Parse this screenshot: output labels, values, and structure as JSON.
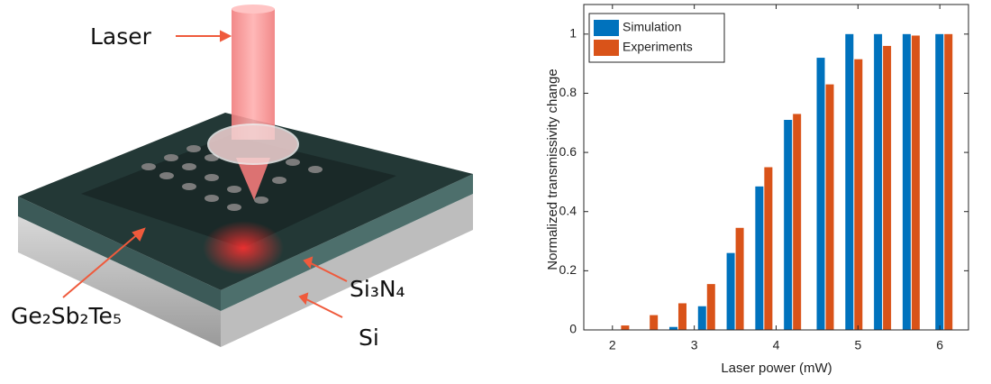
{
  "illustration": {
    "labels": [
      "Laser",
      "Ge₂Sb₂Te₅",
      "Si₃N₄",
      "Si"
    ]
  },
  "chart_data": {
    "type": "bar",
    "xlabel": "Laser power (mW)",
    "ylabel": "Normalized transmissivity change",
    "x": [
      2.1,
      2.45,
      2.8,
      3.15,
      3.5,
      3.85,
      4.2,
      4.6,
      4.95,
      5.3,
      5.65,
      6.05
    ],
    "series": [
      {
        "name": "Simulation",
        "color": "#0072bd",
        "values": [
          0,
          0,
          0.01,
          0.08,
          0.26,
          0.485,
          0.71,
          0.92,
          1.0,
          1.0,
          1.0,
          1.0
        ]
      },
      {
        "name": "Experiments",
        "color": "#d95319",
        "values": [
          0.015,
          0.05,
          0.09,
          0.155,
          0.345,
          0.55,
          0.73,
          0.83,
          0.915,
          0.96,
          0.995,
          1.0
        ]
      }
    ],
    "xlim": [
      1.65,
      6.35
    ],
    "ylim": [
      0,
      1.1
    ],
    "xticks": [
      2,
      3,
      4,
      5,
      6
    ],
    "yticks": [
      0,
      0.2,
      0.4,
      0.6,
      0.8,
      1
    ],
    "legend": "top-left"
  }
}
